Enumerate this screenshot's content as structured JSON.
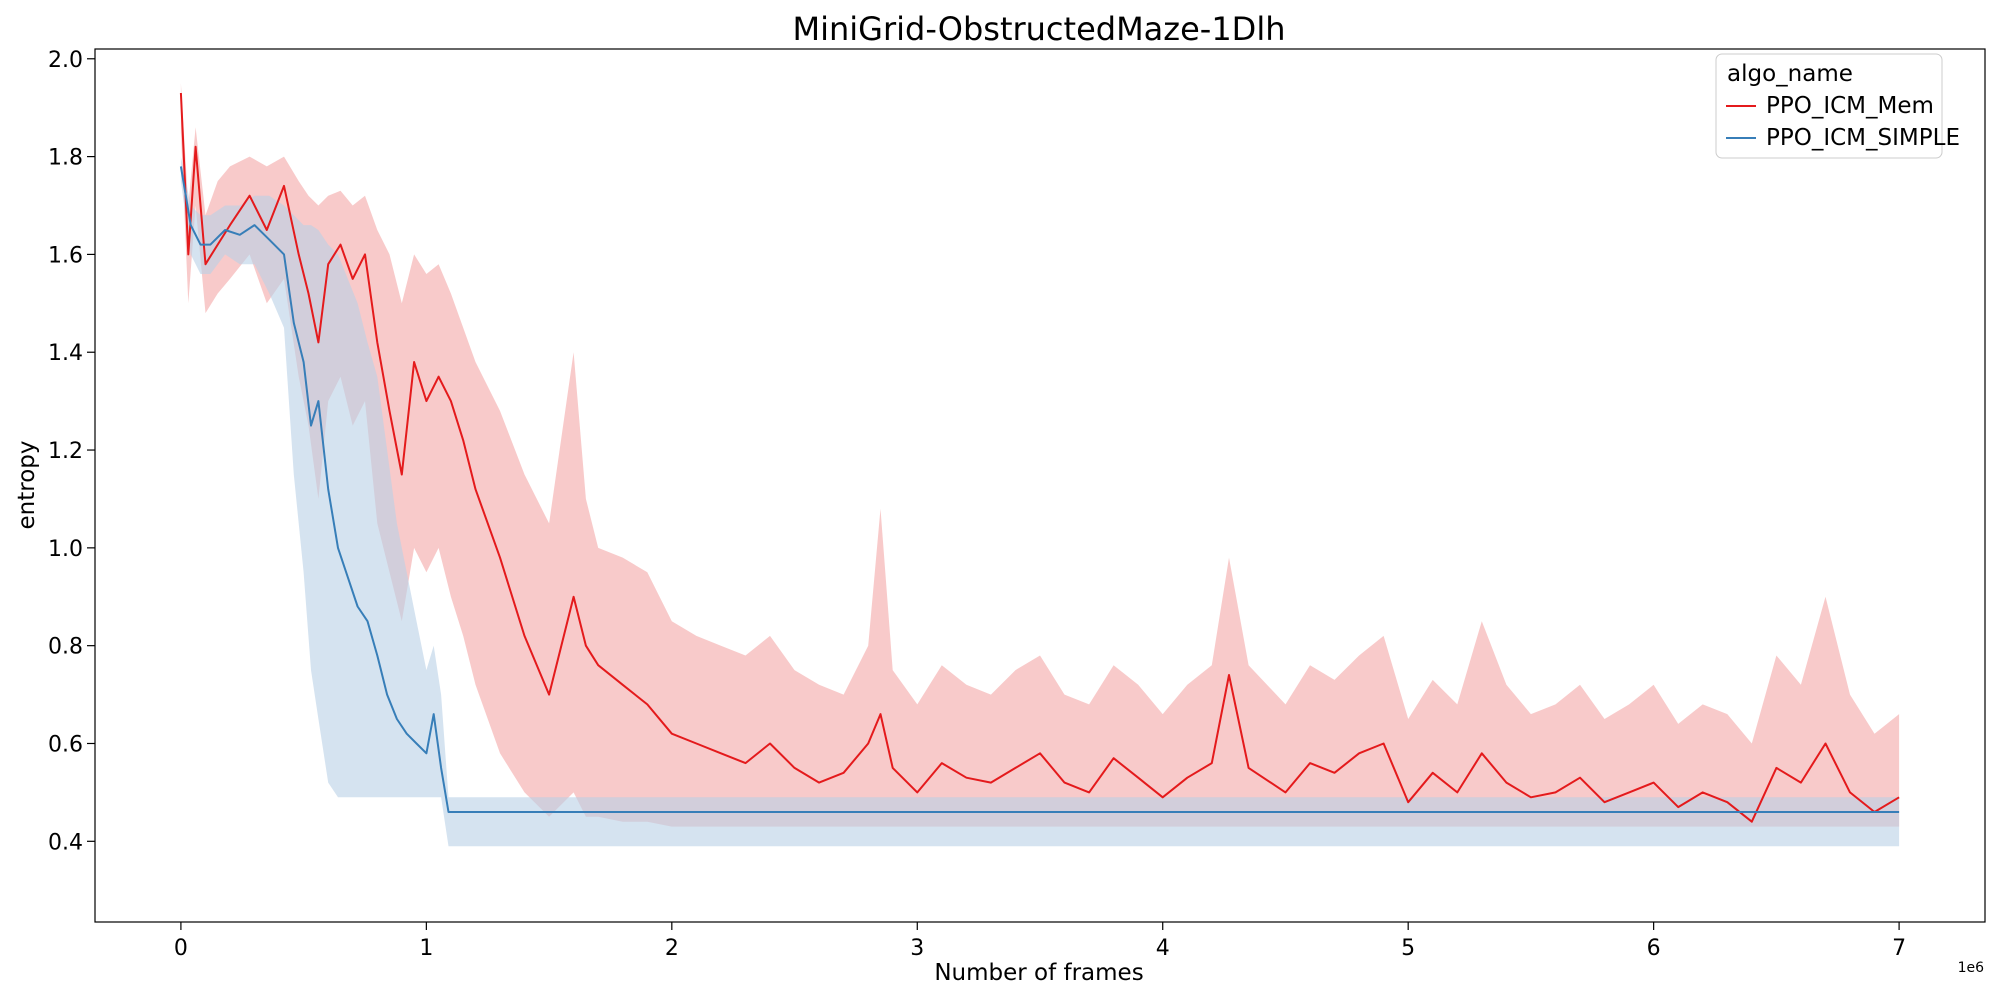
{
  "chart_data": {
    "type": "line",
    "title": "MiniGrid-ObstructedMaze-1Dlh",
    "xlabel": "Number of frames",
    "ylabel": "entropy",
    "x_offset_label": "1e6",
    "xlim": [
      -0.35,
      7.35
    ],
    "ylim": [
      0.235,
      2.02
    ],
    "x_ticks": [
      0,
      1,
      2,
      3,
      4,
      5,
      6,
      7
    ],
    "x_tick_labels": [
      "0",
      "1",
      "2",
      "3",
      "4",
      "5",
      "6",
      "7"
    ],
    "y_ticks": [
      0.4,
      0.6,
      0.8,
      1.0,
      1.2,
      1.4,
      1.6,
      1.8,
      2.0
    ],
    "y_tick_labels": [
      "0.4",
      "0.6",
      "0.8",
      "1.0",
      "1.2",
      "1.4",
      "1.6",
      "1.8",
      "2.0"
    ],
    "grid": false,
    "legend": {
      "title": "algo_name",
      "placement": "top-right"
    },
    "series": [
      {
        "name": "PPO_ICM_Mem",
        "color": "#e41a1c",
        "band_color": "#f4a6a6",
        "x": [
          0.0,
          0.03,
          0.06,
          0.1,
          0.15,
          0.2,
          0.28,
          0.35,
          0.42,
          0.48,
          0.52,
          0.56,
          0.6,
          0.65,
          0.7,
          0.75,
          0.8,
          0.85,
          0.9,
          0.95,
          1.0,
          1.05,
          1.1,
          1.15,
          1.2,
          1.3,
          1.4,
          1.5,
          1.6,
          1.65,
          1.7,
          1.8,
          1.9,
          2.0,
          2.1,
          2.2,
          2.3,
          2.4,
          2.5,
          2.6,
          2.7,
          2.8,
          2.85,
          2.9,
          3.0,
          3.1,
          3.2,
          3.3,
          3.4,
          3.5,
          3.6,
          3.7,
          3.8,
          3.9,
          4.0,
          4.1,
          4.2,
          4.27,
          4.35,
          4.5,
          4.6,
          4.7,
          4.8,
          4.9,
          5.0,
          5.1,
          5.2,
          5.3,
          5.4,
          5.5,
          5.6,
          5.7,
          5.8,
          5.9,
          6.0,
          6.1,
          6.2,
          6.3,
          6.4,
          6.5,
          6.6,
          6.7,
          6.8,
          6.9,
          7.0
        ],
        "y": [
          1.93,
          1.6,
          1.82,
          1.58,
          1.62,
          1.66,
          1.72,
          1.65,
          1.74,
          1.6,
          1.52,
          1.42,
          1.58,
          1.62,
          1.55,
          1.6,
          1.42,
          1.28,
          1.15,
          1.38,
          1.3,
          1.35,
          1.3,
          1.22,
          1.12,
          0.98,
          0.82,
          0.7,
          0.9,
          0.8,
          0.76,
          0.72,
          0.68,
          0.62,
          0.6,
          0.58,
          0.56,
          0.6,
          0.55,
          0.52,
          0.54,
          0.6,
          0.66,
          0.55,
          0.5,
          0.56,
          0.53,
          0.52,
          0.55,
          0.58,
          0.52,
          0.5,
          0.57,
          0.53,
          0.49,
          0.53,
          0.56,
          0.74,
          0.55,
          0.5,
          0.56,
          0.54,
          0.58,
          0.6,
          0.48,
          0.54,
          0.5,
          0.58,
          0.52,
          0.49,
          0.5,
          0.53,
          0.48,
          0.5,
          0.52,
          0.47,
          0.5,
          0.48,
          0.44,
          0.55,
          0.52,
          0.6,
          0.5,
          0.46,
          0.49
        ],
        "y_lower": [
          1.85,
          1.5,
          1.7,
          1.48,
          1.52,
          1.55,
          1.6,
          1.5,
          1.55,
          1.35,
          1.25,
          1.1,
          1.3,
          1.35,
          1.25,
          1.3,
          1.05,
          0.95,
          0.85,
          1.0,
          0.95,
          1.0,
          0.9,
          0.82,
          0.72,
          0.58,
          0.5,
          0.45,
          0.5,
          0.45,
          0.45,
          0.44,
          0.44,
          0.43,
          0.43,
          0.43,
          0.43,
          0.43,
          0.43,
          0.43,
          0.43,
          0.43,
          0.43,
          0.43,
          0.43,
          0.43,
          0.43,
          0.43,
          0.43,
          0.43,
          0.43,
          0.43,
          0.43,
          0.43,
          0.43,
          0.43,
          0.43,
          0.43,
          0.43,
          0.43,
          0.43,
          0.43,
          0.43,
          0.43,
          0.43,
          0.43,
          0.43,
          0.43,
          0.43,
          0.43,
          0.43,
          0.43,
          0.43,
          0.43,
          0.43,
          0.43,
          0.43,
          0.43,
          0.43,
          0.43,
          0.43,
          0.43,
          0.43,
          0.43,
          0.43
        ],
        "y_upper": [
          1.95,
          1.7,
          1.86,
          1.68,
          1.75,
          1.78,
          1.8,
          1.78,
          1.8,
          1.75,
          1.72,
          1.7,
          1.72,
          1.73,
          1.7,
          1.72,
          1.65,
          1.6,
          1.5,
          1.6,
          1.56,
          1.58,
          1.52,
          1.45,
          1.38,
          1.28,
          1.15,
          1.05,
          1.4,
          1.1,
          1.0,
          0.98,
          0.95,
          0.85,
          0.82,
          0.8,
          0.78,
          0.82,
          0.75,
          0.72,
          0.7,
          0.8,
          1.08,
          0.75,
          0.68,
          0.76,
          0.72,
          0.7,
          0.75,
          0.78,
          0.7,
          0.68,
          0.76,
          0.72,
          0.66,
          0.72,
          0.76,
          0.98,
          0.76,
          0.68,
          0.76,
          0.73,
          0.78,
          0.82,
          0.65,
          0.73,
          0.68,
          0.85,
          0.72,
          0.66,
          0.68,
          0.72,
          0.65,
          0.68,
          0.72,
          0.64,
          0.68,
          0.66,
          0.6,
          0.78,
          0.72,
          0.9,
          0.7,
          0.62,
          0.66
        ]
      },
      {
        "name": "PPO_ICM_SIMPLE",
        "color": "#377eb8",
        "band_color": "#b9d0e6",
        "x": [
          0.0,
          0.04,
          0.08,
          0.12,
          0.18,
          0.24,
          0.3,
          0.36,
          0.42,
          0.46,
          0.5,
          0.53,
          0.56,
          0.6,
          0.64,
          0.68,
          0.72,
          0.76,
          0.8,
          0.84,
          0.88,
          0.92,
          0.96,
          1.0,
          1.03,
          1.06,
          1.09,
          1.5,
          2.0,
          3.0,
          4.0,
          5.0,
          6.0,
          7.0
        ],
        "y": [
          1.78,
          1.66,
          1.62,
          1.62,
          1.65,
          1.64,
          1.66,
          1.63,
          1.6,
          1.46,
          1.38,
          1.25,
          1.3,
          1.12,
          1.0,
          0.94,
          0.88,
          0.85,
          0.78,
          0.7,
          0.65,
          0.62,
          0.6,
          0.58,
          0.66,
          0.55,
          0.46,
          0.46,
          0.46,
          0.46,
          0.46,
          0.46,
          0.46,
          0.46
        ],
        "y_lower": [
          1.75,
          1.6,
          1.56,
          1.56,
          1.6,
          1.58,
          1.58,
          1.52,
          1.45,
          1.15,
          0.95,
          0.75,
          0.65,
          0.52,
          0.49,
          0.49,
          0.49,
          0.49,
          0.49,
          0.49,
          0.49,
          0.49,
          0.49,
          0.49,
          0.49,
          0.49,
          0.39,
          0.39,
          0.39,
          0.39,
          0.39,
          0.39,
          0.39,
          0.39
        ],
        "y_upper": [
          1.8,
          1.7,
          1.68,
          1.68,
          1.7,
          1.7,
          1.72,
          1.72,
          1.7,
          1.68,
          1.66,
          1.66,
          1.65,
          1.62,
          1.6,
          1.55,
          1.5,
          1.42,
          1.35,
          1.2,
          1.05,
          0.95,
          0.85,
          0.75,
          0.8,
          0.7,
          0.49,
          0.49,
          0.49,
          0.49,
          0.49,
          0.49,
          0.49,
          0.49
        ]
      }
    ]
  }
}
